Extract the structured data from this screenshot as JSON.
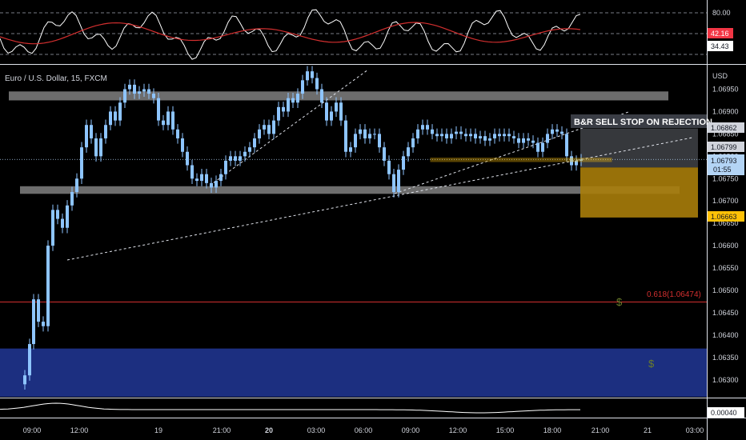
{
  "chart_data": {
    "type": "candlestick",
    "symbol_label": "Euro / U.S. Dollar, 15, FXCM",
    "price_axis_label": "USD",
    "x_ticks": [
      "09:00",
      "12:00",
      "19",
      "21:00",
      "20",
      "03:00",
      "06:00",
      "09:00",
      "12:00",
      "15:00",
      "18:00",
      "21:00",
      "21",
      "03:00"
    ],
    "x_ticks_bold": [
      "20"
    ],
    "y_ticks": [
      "1.06950",
      "1.06900",
      "1.06850",
      "1.06800",
      "1.06750",
      "1.06700",
      "1.06650",
      "1.06600",
      "1.06550",
      "1.06500",
      "1.06450",
      "1.06400",
      "1.06350",
      "1.06300"
    ],
    "ylim": [
      1.06262,
      1.07001
    ],
    "rsi_ticks": [
      "80.00"
    ],
    "price_badges": {
      "p1": "1.06862",
      "p2": "1.06799",
      "p3": "1.06793",
      "timer": "01:55",
      "p4": "1.06663",
      "rsi_a": "42.16",
      "rsi_b": "34.43",
      "volume": "0.00040"
    },
    "annotations": {
      "setup": "B&R SELL STOP ON REJECTION",
      "fib": "0.618(1.06474)",
      "dollar_1": "$",
      "dollar_2": "$"
    },
    "levels": {
      "fib_price": 1.06474,
      "resistance_zone": [
        1.06925,
        1.06945
      ],
      "support_zone": [
        1.06716,
        1.06733
      ],
      "demand_zone": [
        1.06262,
        1.0637
      ],
      "entry_zone": [
        1.06788,
        1.06796
      ],
      "target_box": [
        1.06663,
        1.06775
      ],
      "stop_box": [
        1.06775,
        1.06862
      ]
    },
    "colors": {
      "candle_up": "#8ec5ff",
      "candle_down": "#8ec5ff",
      "zone_gray": "#808080",
      "demand_blue": "#1c2f80",
      "fib_red": "#d32f2f",
      "target_orange": "#a87d0a",
      "rsi_white": "#ffffff",
      "rsi_ma_red": "#d32f2f",
      "badge_blue": "#b3d4f5",
      "badge_orange": "#ffc107",
      "badge_red": "#f23645"
    }
  }
}
